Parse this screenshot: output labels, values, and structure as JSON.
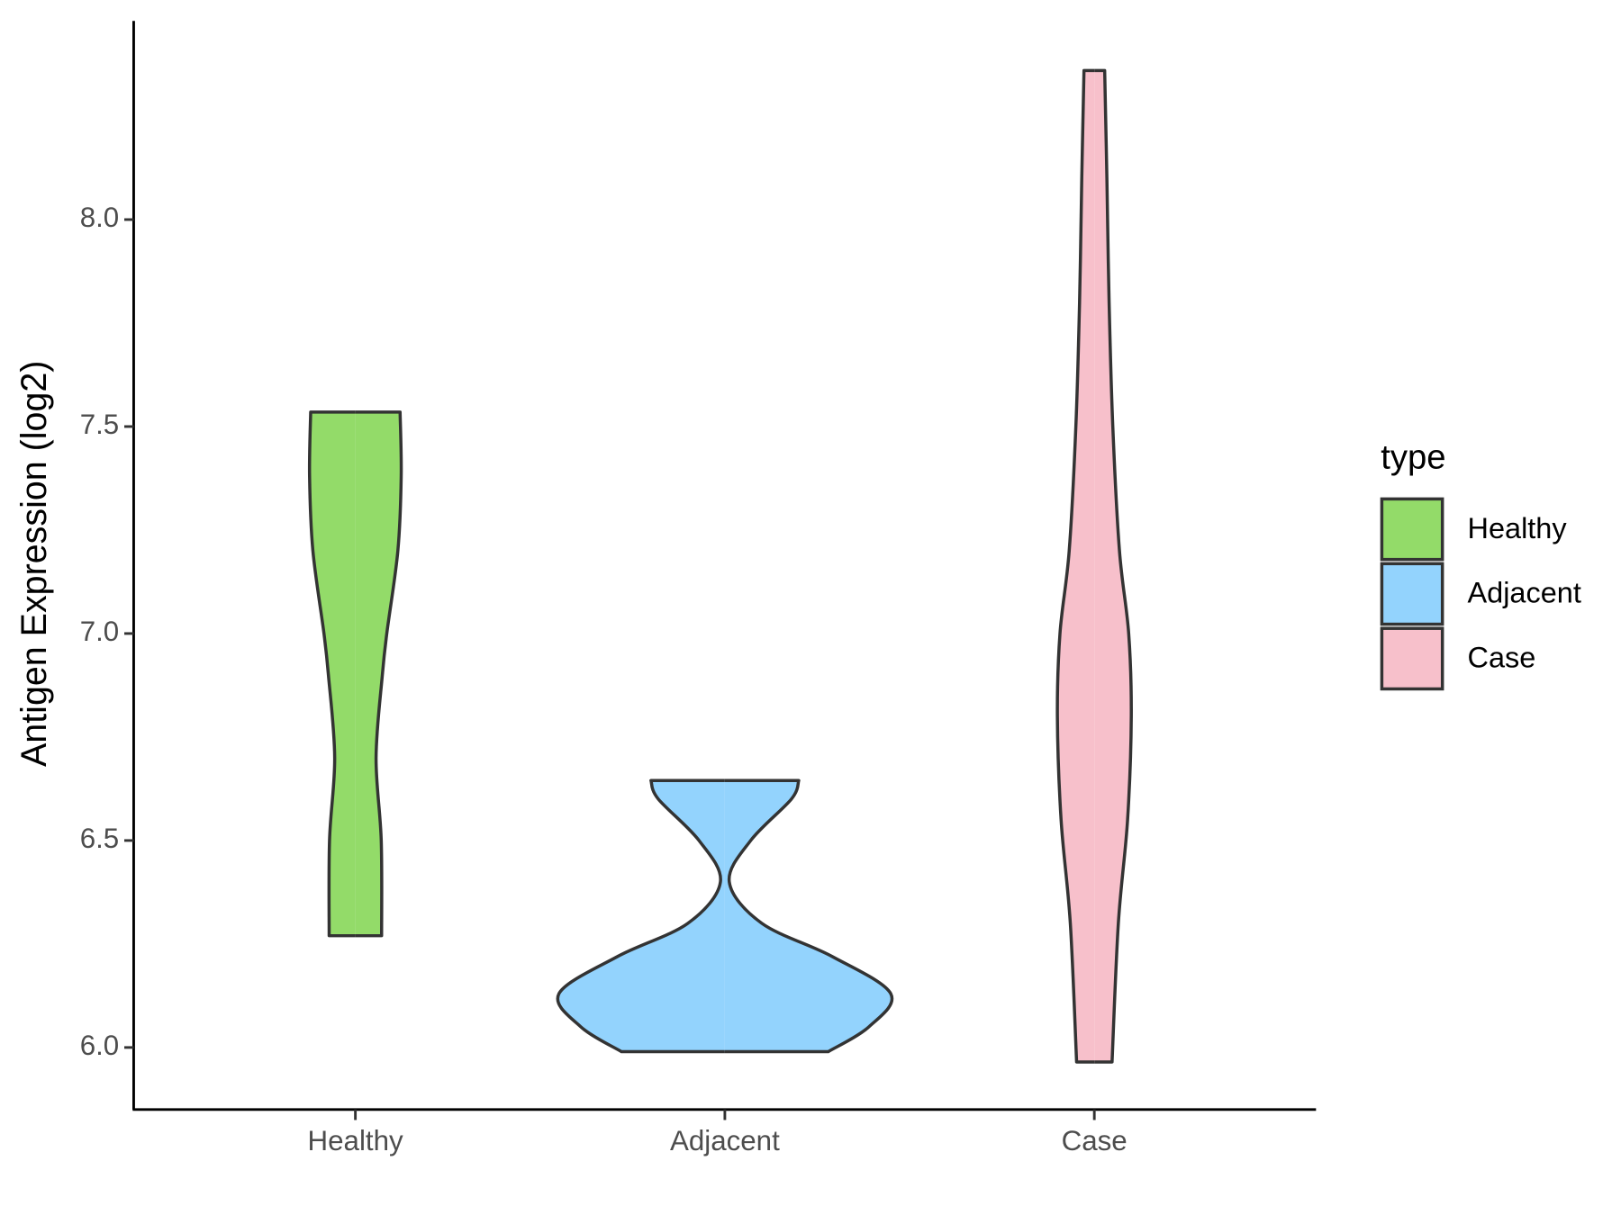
{
  "chart_data": {
    "type": "violin",
    "ylabel": "Antigen Expression (log2)",
    "categories": [
      "Healthy",
      "Adjacent",
      "Case"
    ],
    "legend_title": "type",
    "legend": "right",
    "ylim": [
      5.85,
      8.48
    ],
    "yticks": [
      {
        "value": 6,
        "label": "6.0"
      },
      {
        "value": 6.5,
        "label": "6.5"
      },
      {
        "value": 7,
        "label": "7.0"
      },
      {
        "value": 7.5,
        "label": "7.5"
      },
      {
        "value": 8,
        "label": "8.0"
      }
    ],
    "series": [
      {
        "name": "Healthy",
        "color": "#93db69",
        "y": [
          6.27,
          6.5,
          6.7,
          6.9,
          7.0,
          7.2,
          7.38,
          7.535
        ],
        "width": [
          0.071,
          0.07,
          0.056,
          0.073,
          0.085,
          0.115,
          0.124,
          0.121
        ]
      },
      {
        "name": "Adjacent",
        "color": "#93d3fd",
        "y": [
          5.99,
          6.05,
          6.13,
          6.22,
          6.3,
          6.4,
          6.5,
          6.6,
          6.645
        ],
        "width": [
          0.28,
          0.39,
          0.449,
          0.29,
          0.1,
          0.012,
          0.07,
          0.18,
          0.2
        ]
      },
      {
        "name": "Case",
        "color": "#f7c0cb",
        "y": [
          5.965,
          6.3,
          6.55,
          6.8,
          7.0,
          7.2,
          7.5,
          7.8,
          8.1,
          8.36
        ],
        "width": [
          0.048,
          0.065,
          0.09,
          0.1,
          0.093,
          0.068,
          0.05,
          0.04,
          0.034,
          0.028
        ]
      }
    ]
  }
}
